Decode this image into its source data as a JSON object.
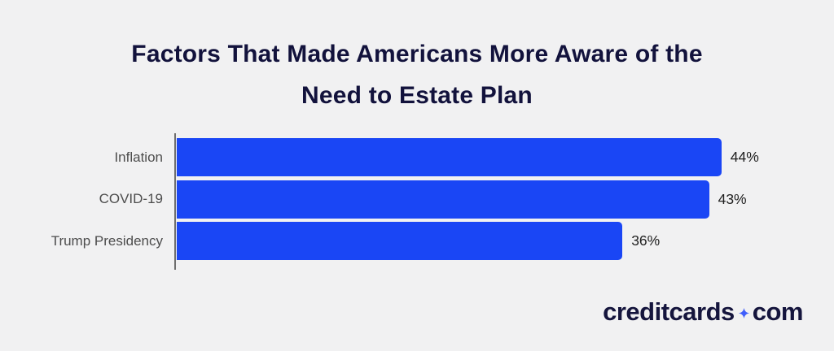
{
  "page": {
    "background_color": "#f1f1f2"
  },
  "header": {
    "title": "Factors That Made Americans More Aware of the Need to Estate Plan",
    "title_lines": [
      "Factors That Made Americans More Aware of the",
      "Need to Estate Plan"
    ],
    "title_color": "#12123c"
  },
  "chart_data": {
    "type": "bar",
    "orientation": "horizontal",
    "title": "Factors That Made Americans More Aware of the Need to Estate Plan",
    "categories": [
      "Inflation",
      "COVID-19",
      "Trump Presidency"
    ],
    "values": [
      44,
      43,
      36
    ],
    "value_labels": [
      "44%",
      "43%",
      "36%"
    ],
    "unit": "%",
    "xlim": [
      0,
      52
    ],
    "grid": false,
    "legend": false,
    "bar_color": "#1a46f5",
    "axis_color": "#6e6e6e",
    "category_label_color": "#4d4d4d",
    "value_label_color": "#1f1f1f"
  },
  "branding": {
    "logo_text_left": "creditcards",
    "logo_text_right": "com",
    "logo_color": "#15153d",
    "sparkle_icon": "four-point-star",
    "sparkle_color": "#3f5efb"
  }
}
